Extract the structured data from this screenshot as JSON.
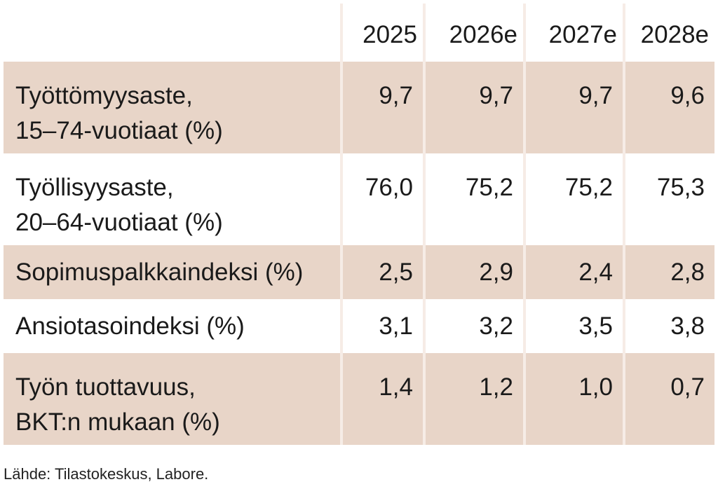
{
  "chart_data": {
    "type": "table",
    "columns": [
      "",
      "2025",
      "2026e",
      "2027e",
      "2028e"
    ],
    "rows": [
      {
        "label_lines": [
          "Työttömyysaste,",
          "15–74-vuotiaat (%)"
        ],
        "values": [
          "9,7",
          "9,7",
          "9,7",
          "9,6"
        ],
        "shaded": true
      },
      {
        "label_lines": [
          "Työllisyysaste,",
          "20–64-vuotiaat (%)"
        ],
        "values": [
          "76,0",
          "75,2",
          "75,2",
          "75,3"
        ],
        "shaded": false
      },
      {
        "label_lines": [
          "Sopimuspalkkaindeksi (%)"
        ],
        "values": [
          "2,5",
          "2,9",
          "2,4",
          "2,8"
        ],
        "shaded": true
      },
      {
        "label_lines": [
          "Ansiotasoindeksi (%)"
        ],
        "values": [
          "3,1",
          "3,2",
          "3,5",
          "3,8"
        ],
        "shaded": false
      },
      {
        "label_lines": [
          "Työn tuottavuus,",
          "BKT:n mukaan (%)"
        ],
        "values": [
          "1,4",
          "1,2",
          "1,0",
          "0,7"
        ],
        "shaded": true
      }
    ],
    "source": "Lähde: Tilastokeskus, Labore.",
    "colors": {
      "shaded_row": "#e8d5c8",
      "separator": "#f6ece6"
    }
  }
}
